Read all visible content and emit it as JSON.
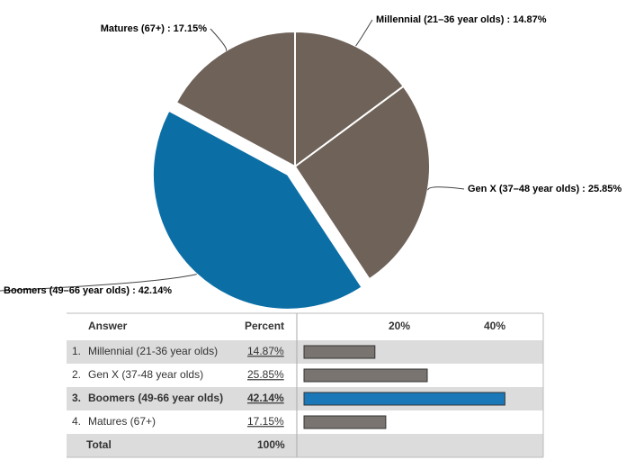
{
  "chart_data": [
    {
      "type": "pie",
      "values": [
        14.87,
        25.85,
        42.14,
        17.15
      ],
      "value_labels": [
        "Millennial (21–36 year olds) : 14.87%",
        "Gen X (37–48 year olds) : 25.85%",
        "Boomers (49–66 year olds) : 42.14%",
        "Matures (67+) : 17.15%"
      ],
      "colors": [
        "#6e6259",
        "#6e6259",
        "#0b6fa6",
        "#6e6259"
      ],
      "exploded": 2
    },
    {
      "type": "bar",
      "header": [
        "Answer",
        "Percent"
      ],
      "row_numbers": [
        "1.",
        "2.",
        "3.",
        "4."
      ],
      "categories": [
        "Millennial (21-36 year olds)",
        "Gen X (37-48 year olds)",
        "Boomers (49-66 year olds)",
        "Matures (67+)"
      ],
      "values": [
        14.87,
        25.85,
        42.14,
        17.15
      ],
      "value_labels": [
        "14.87%",
        "25.85%",
        "42.14%",
        "17.15%"
      ],
      "color": "#7a7470",
      "highlight_color": "#1a78b8",
      "highlight": 2,
      "xlim": [
        0,
        50
      ],
      "xticks": [
        {
          "value": 20,
          "label": "20%"
        },
        {
          "value": 40,
          "label": "40%"
        }
      ],
      "total": [
        "Total",
        "100%"
      ]
    }
  ]
}
